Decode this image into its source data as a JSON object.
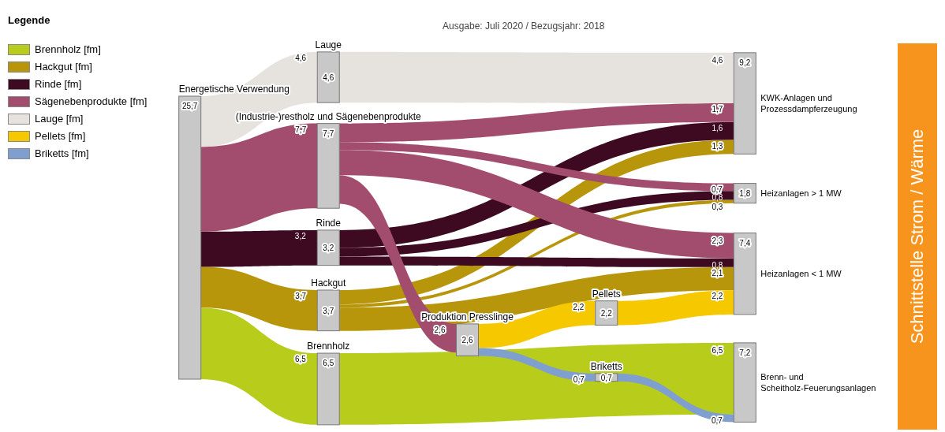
{
  "chart_data": {
    "type": "other",
    "legend_title": "Legende",
    "legend": "left",
    "annotations": [
      "Ausgabe: Juli 2020 / Bezugsjahr: 2018",
      "Schnittstelle Strom / Wärme"
    ],
    "categories": [
      "Energetische Verwendung",
      "Lauge",
      "(Industrie-)restholz und Sägenebenprodukte",
      "Rinde",
      "Hackgut",
      "Brennholz",
      "Produktion Presslinge",
      "Pellets",
      "Briketts",
      "KWK-Anlagen und Prozessdampferzeugung",
      "Heizanlagen > 1 MW",
      "Heizanlagen < 1 MW",
      "Brenn- und Scheitholz-Feuerungsanlagen"
    ],
    "values": [
      25.7,
      4.6,
      7.7,
      3.2,
      3.7,
      6.5,
      2.6,
      2.2,
      0.7,
      9.2,
      1.8,
      7.4,
      7.2
    ],
    "value_labels": [
      "25,7",
      "4,6",
      "7,7",
      "3,2",
      "3,7",
      "6,5",
      "2,6",
      "2,2",
      "0,7",
      "9,2",
      "1,8",
      "7,4",
      "7,2"
    ],
    "series": [
      {
        "name": "Brennholz [fm]",
        "color": "#b8cc1c",
        "values": [
          null,
          null,
          null,
          null,
          null,
          6.5,
          null,
          null,
          null,
          null,
          null,
          null,
          6.5
        ],
        "value_labels": [
          null,
          null,
          null,
          null,
          null,
          "6,5",
          null,
          null,
          null,
          null,
          null,
          null,
          "6,5"
        ]
      },
      {
        "name": "Hackgut [fm]",
        "color": "#b8960c",
        "values": [
          null,
          null,
          null,
          null,
          3.7,
          null,
          null,
          null,
          null,
          1.3,
          0.3,
          2.1,
          null
        ],
        "value_labels": [
          null,
          null,
          null,
          null,
          "3,7",
          null,
          null,
          null,
          null,
          "1,3",
          "0,3",
          "2,1",
          null
        ]
      },
      {
        "name": "Rinde [fm]",
        "color": "#3d0a22",
        "values": [
          null,
          null,
          null,
          3.2,
          null,
          null,
          null,
          null,
          null,
          1.6,
          0.8,
          0.8,
          null
        ],
        "value_labels": [
          null,
          null,
          null,
          "3,2",
          null,
          null,
          null,
          null,
          null,
          "1,6",
          "0,8",
          "0,8",
          null
        ]
      },
      {
        "name": "Sägenebenprodukte [fm]",
        "color": "#a34d6e",
        "values": [
          null,
          null,
          7.7,
          null,
          null,
          null,
          2.6,
          null,
          null,
          1.7,
          0.7,
          2.3,
          null
        ],
        "value_labels": [
          null,
          null,
          "7,7",
          null,
          null,
          null,
          "2,6",
          null,
          null,
          "1,7",
          "0,7",
          "2,3",
          null
        ]
      },
      {
        "name": "Lauge [fm]",
        "color": "#e6e2de",
        "values": [
          null,
          4.6,
          null,
          null,
          null,
          null,
          null,
          null,
          null,
          4.6,
          null,
          null,
          null
        ],
        "value_labels": [
          null,
          "4,6",
          null,
          null,
          null,
          null,
          null,
          null,
          null,
          "4,6",
          null,
          null,
          null
        ]
      },
      {
        "name": "Pellets [fm]",
        "color": "#f5c800",
        "values": [
          null,
          null,
          null,
          null,
          null,
          null,
          null,
          2.2,
          null,
          null,
          null,
          2.2,
          null
        ],
        "value_labels": [
          null,
          null,
          null,
          null,
          null,
          null,
          null,
          "2,2",
          null,
          null,
          null,
          "2,2",
          null
        ]
      },
      {
        "name": "Briketts [fm]",
        "color": "#7f9fcf",
        "values": [
          null,
          null,
          null,
          null,
          null,
          null,
          null,
          null,
          0.7,
          null,
          null,
          null,
          0.7
        ],
        "value_labels": [
          null,
          null,
          null,
          null,
          null,
          null,
          null,
          null,
          "0,7",
          null,
          null,
          null,
          "0,7"
        ]
      }
    ]
  }
}
